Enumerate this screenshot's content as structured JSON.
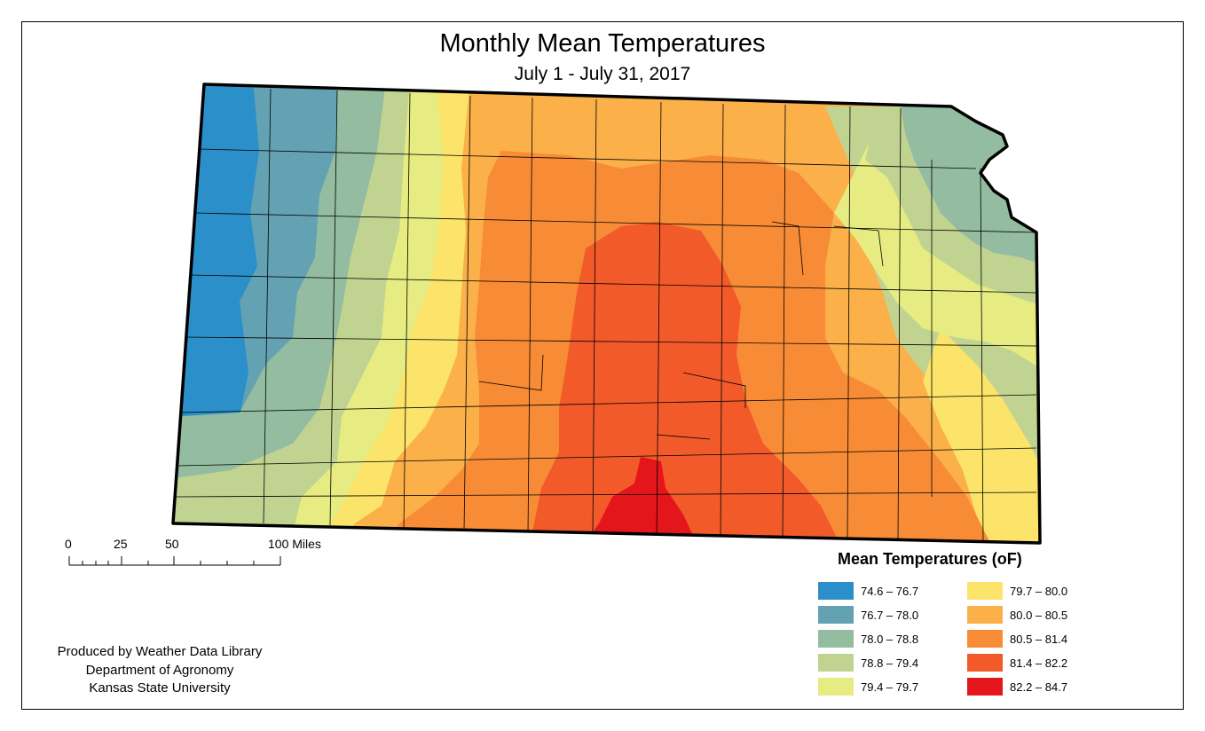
{
  "title": "Monthly Mean Temperatures",
  "subtitle": "July 1 - July 31, 2017",
  "scale": {
    "labels": [
      "0",
      "25",
      "50",
      "100 Miles"
    ]
  },
  "legend": {
    "title": "Mean Temperatures (oF)",
    "items": [
      {
        "label": "74.6 – 76.7",
        "color": "#2b8fc9"
      },
      {
        "label": "76.7 – 78.0",
        "color": "#63a2b3"
      },
      {
        "label": "78.0 – 78.8",
        "color": "#93bca0"
      },
      {
        "label": "78.8 – 79.4",
        "color": "#c1d391"
      },
      {
        "label": "79.4 – 79.7",
        "color": "#e6ec82"
      },
      {
        "label": "79.7 – 80.0",
        "color": "#fbe469"
      },
      {
        "label": "80.0 – 80.5",
        "color": "#fbb04a"
      },
      {
        "label": "80.5 – 81.4",
        "color": "#f88c36"
      },
      {
        "label": "81.4 – 82.2",
        "color": "#f25a2a"
      },
      {
        "label": "82.2 – 84.7",
        "color": "#e4151b"
      }
    ]
  },
  "credits": {
    "line1": "Produced by Weather Data Library",
    "line2": "Department of Agronomy",
    "line3": "Kansas State University"
  }
}
